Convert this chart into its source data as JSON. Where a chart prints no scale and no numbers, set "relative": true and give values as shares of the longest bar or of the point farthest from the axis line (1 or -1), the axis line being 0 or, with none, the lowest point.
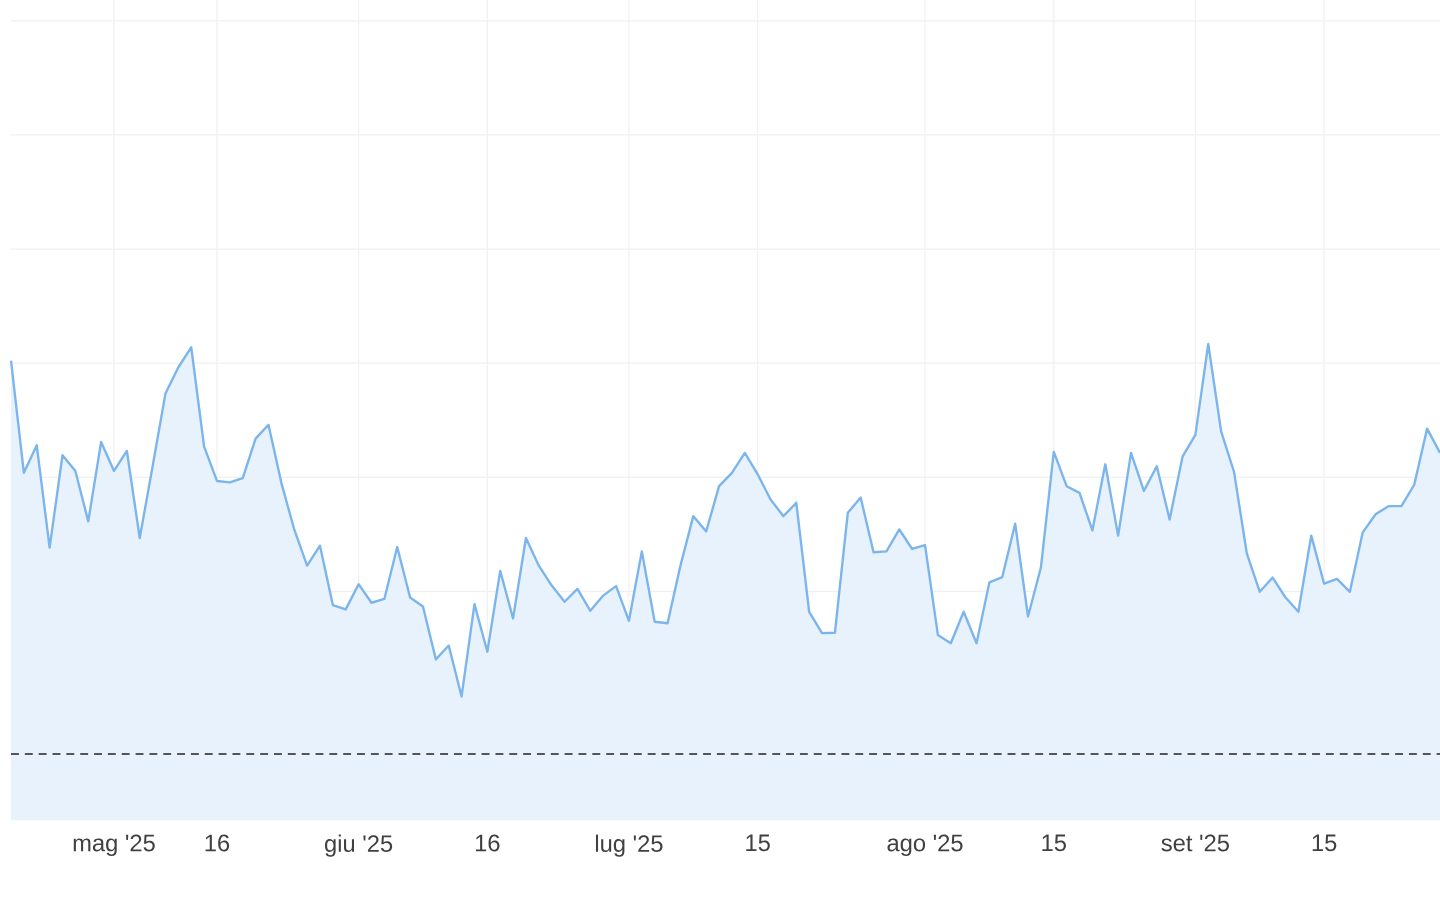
{
  "chart_data": {
    "type": "area",
    "relative": true,
    "grid": true,
    "marker": "none",
    "line_style": "solid",
    "categories": [
      null,
      null,
      null,
      null,
      null,
      null,
      null,
      null,
      "mag '25",
      null,
      null,
      null,
      null,
      null,
      null,
      null,
      "16",
      null,
      null,
      null,
      null,
      null,
      null,
      null,
      null,
      null,
      null,
      "giu '25",
      null,
      null,
      null,
      null,
      null,
      null,
      null,
      null,
      null,
      "16",
      null,
      null,
      null,
      null,
      null,
      null,
      null,
      null,
      null,
      null,
      "lug '25",
      null,
      null,
      null,
      null,
      null,
      null,
      null,
      null,
      null,
      "15",
      null,
      null,
      null,
      null,
      null,
      null,
      null,
      null,
      null,
      null,
      null,
      null,
      "ago '25",
      null,
      null,
      null,
      null,
      null,
      null,
      null,
      null,
      null,
      "15",
      null,
      null,
      null,
      null,
      null,
      null,
      null,
      null,
      null,
      null,
      "set '25",
      null,
      null,
      null,
      null,
      null,
      null,
      null,
      null,
      null,
      "15",
      null,
      null,
      null,
      null,
      null,
      null,
      null,
      null,
      null
    ],
    "series": [
      {
        "color": "#7cb5ec",
        "values": [
          0.965,
          0.729,
          0.787,
          0.572,
          0.766,
          0.733,
          0.627,
          0.794,
          0.733,
          0.775,
          0.592,
          0.743,
          0.896,
          0.951,
          0.993,
          0.784,
          0.712,
          0.709,
          0.718,
          0.801,
          0.83,
          0.708,
          0.61,
          0.534,
          0.576,
          0.451,
          0.442,
          0.495,
          0.456,
          0.464,
          0.573,
          0.467,
          0.448,
          0.337,
          0.366,
          0.259,
          0.453,
          0.353,
          0.523,
          0.423,
          0.592,
          0.534,
          0.492,
          0.458,
          0.485,
          0.439,
          0.471,
          0.491,
          0.418,
          0.564,
          0.416,
          0.413,
          0.534,
          0.638,
          0.606,
          0.701,
          0.729,
          0.771,
          0.726,
          0.673,
          0.638,
          0.666,
          0.437,
          0.392,
          0.393,
          0.645,
          0.677,
          0.562,
          0.564,
          0.61,
          0.569,
          0.577,
          0.388,
          0.371,
          0.437,
          0.371,
          0.499,
          0.51,
          0.622,
          0.427,
          0.53,
          0.773,
          0.701,
          0.687,
          0.608,
          0.747,
          0.597,
          0.771,
          0.691,
          0.743,
          0.631,
          0.763,
          0.809,
          1.0,
          0.816,
          0.731,
          0.559,
          0.479,
          0.509,
          0.467,
          0.437,
          0.597,
          0.496,
          0.506,
          0.479,
          0.604,
          0.642,
          0.659,
          0.659,
          0.704,
          0.822,
          0.771
        ]
      }
    ],
    "ref_lines": [
      {
        "axis": "y",
        "value": 0.138,
        "color": "#555555",
        "line_style": "dashed"
      }
    ]
  }
}
